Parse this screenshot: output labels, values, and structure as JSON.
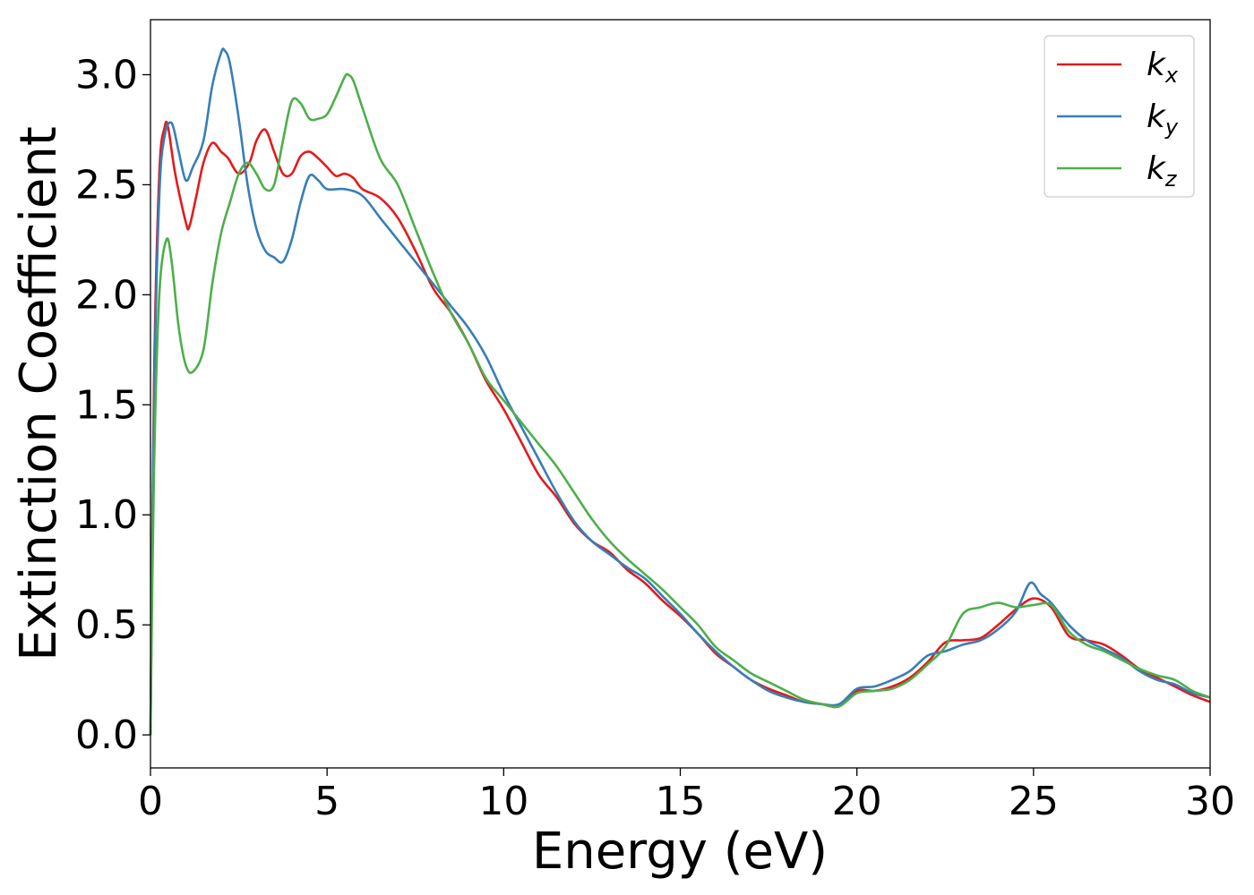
{
  "chart_data": {
    "type": "line",
    "xlabel": "Energy (eV)",
    "ylabel": "Extinction Coefficient",
    "xlim": [
      0,
      30
    ],
    "ylim": [
      -0.15,
      3.25
    ],
    "xticks": [
      0,
      5,
      10,
      15,
      20,
      25,
      30
    ],
    "xtick_labels": [
      "0",
      "5",
      "10",
      "15",
      "20",
      "25",
      "30"
    ],
    "yticks": [
      0.0,
      0.5,
      1.0,
      1.5,
      2.0,
      2.5,
      3.0
    ],
    "ytick_labels": [
      "0.0",
      "0.5",
      "1.0",
      "1.5",
      "2.0",
      "2.5",
      "3.0"
    ],
    "grid": false,
    "legend_position": "top-right",
    "series": [
      {
        "name": "k",
        "subscript": "x",
        "color": "#e41a1c",
        "x": [
          0,
          0.1,
          0.25,
          0.4,
          0.5,
          0.7,
          1.0,
          1.1,
          1.3,
          1.5,
          1.75,
          2.0,
          2.2,
          2.5,
          2.8,
          3.0,
          3.25,
          3.5,
          3.75,
          4.0,
          4.25,
          4.5,
          4.75,
          5.0,
          5.25,
          5.5,
          5.75,
          6.0,
          6.5,
          7.0,
          7.5,
          8.0,
          8.5,
          9.0,
          9.5,
          10.0,
          10.5,
          11.0,
          11.5,
          12.0,
          12.5,
          13.0,
          13.5,
          14.0,
          14.5,
          15.0,
          15.5,
          16.0,
          16.5,
          17.0,
          17.5,
          18.0,
          18.5,
          19.0,
          19.5,
          20.0,
          20.5,
          21.0,
          21.5,
          22.0,
          22.5,
          23.0,
          23.5,
          24.0,
          24.5,
          25.0,
          25.5,
          26.0,
          26.5,
          27.0,
          27.5,
          28.0,
          28.5,
          29.0,
          29.5,
          30.0
        ],
        "y": [
          0.0,
          1.6,
          2.55,
          2.76,
          2.76,
          2.55,
          2.33,
          2.31,
          2.45,
          2.6,
          2.69,
          2.65,
          2.62,
          2.55,
          2.6,
          2.7,
          2.75,
          2.65,
          2.55,
          2.55,
          2.63,
          2.65,
          2.62,
          2.58,
          2.54,
          2.55,
          2.53,
          2.48,
          2.44,
          2.35,
          2.2,
          2.03,
          1.92,
          1.78,
          1.61,
          1.48,
          1.33,
          1.18,
          1.08,
          0.96,
          0.88,
          0.83,
          0.75,
          0.69,
          0.61,
          0.54,
          0.46,
          0.37,
          0.31,
          0.25,
          0.21,
          0.18,
          0.15,
          0.14,
          0.13,
          0.2,
          0.2,
          0.22,
          0.26,
          0.33,
          0.42,
          0.43,
          0.44,
          0.5,
          0.57,
          0.62,
          0.58,
          0.45,
          0.43,
          0.41,
          0.36,
          0.3,
          0.26,
          0.22,
          0.18,
          0.15
        ]
      },
      {
        "name": "k",
        "subscript": "y",
        "color": "#377eb8",
        "x": [
          0,
          0.1,
          0.25,
          0.4,
          0.6,
          0.8,
          1.0,
          1.2,
          1.5,
          1.75,
          2.0,
          2.1,
          2.25,
          2.5,
          2.75,
          3.0,
          3.25,
          3.5,
          3.75,
          4.0,
          4.25,
          4.5,
          4.75,
          5.0,
          5.5,
          6.0,
          6.5,
          7.0,
          7.5,
          8.0,
          8.5,
          9.0,
          9.5,
          10.0,
          10.5,
          11.0,
          11.5,
          12.0,
          12.5,
          13.0,
          13.5,
          14.0,
          14.5,
          15.0,
          15.5,
          16.0,
          16.5,
          17.0,
          17.5,
          18.0,
          18.5,
          19.0,
          19.5,
          20.0,
          20.5,
          21.0,
          21.5,
          22.0,
          22.5,
          23.0,
          23.5,
          24.0,
          24.5,
          24.9,
          25.2,
          25.5,
          26.0,
          26.5,
          27.0,
          27.5,
          28.0,
          28.5,
          29.0,
          29.5,
          30.0
        ],
        "y": [
          0.0,
          1.5,
          2.45,
          2.72,
          2.78,
          2.65,
          2.52,
          2.58,
          2.7,
          2.95,
          3.1,
          3.11,
          3.05,
          2.8,
          2.5,
          2.3,
          2.2,
          2.17,
          2.15,
          2.25,
          2.42,
          2.54,
          2.52,
          2.48,
          2.48,
          2.45,
          2.35,
          2.25,
          2.15,
          2.05,
          1.95,
          1.85,
          1.72,
          1.55,
          1.4,
          1.25,
          1.1,
          0.97,
          0.88,
          0.82,
          0.76,
          0.71,
          0.63,
          0.55,
          0.46,
          0.38,
          0.31,
          0.25,
          0.2,
          0.17,
          0.15,
          0.14,
          0.14,
          0.21,
          0.22,
          0.25,
          0.29,
          0.36,
          0.38,
          0.41,
          0.43,
          0.48,
          0.56,
          0.69,
          0.64,
          0.6,
          0.5,
          0.43,
          0.39,
          0.35,
          0.29,
          0.25,
          0.23,
          0.19,
          0.17
        ]
      },
      {
        "name": "k",
        "subscript": "z",
        "color": "#4daf4a",
        "x": [
          0,
          0.1,
          0.25,
          0.45,
          0.6,
          0.8,
          1.0,
          1.2,
          1.5,
          1.75,
          2.0,
          2.25,
          2.5,
          2.75,
          3.0,
          3.25,
          3.5,
          3.75,
          4.0,
          4.25,
          4.5,
          4.75,
          5.0,
          5.25,
          5.5,
          5.6,
          5.75,
          6.0,
          6.5,
          7.0,
          7.5,
          8.0,
          8.5,
          9.0,
          9.5,
          10.0,
          10.5,
          11.0,
          11.5,
          12.0,
          12.5,
          13.0,
          13.5,
          14.0,
          14.5,
          15.0,
          15.5,
          16.0,
          16.5,
          17.0,
          17.5,
          18.0,
          18.5,
          19.0,
          19.5,
          20.0,
          20.5,
          21.0,
          21.5,
          22.0,
          22.5,
          23.0,
          23.5,
          24.0,
          24.5,
          25.0,
          25.5,
          26.0,
          26.5,
          27.0,
          27.5,
          28.0,
          28.5,
          29.0,
          29.5,
          30.0
        ],
        "y": [
          0.0,
          1.2,
          2.0,
          2.25,
          2.15,
          1.85,
          1.68,
          1.65,
          1.75,
          2.05,
          2.28,
          2.42,
          2.55,
          2.6,
          2.55,
          2.48,
          2.5,
          2.7,
          2.88,
          2.87,
          2.8,
          2.8,
          2.82,
          2.9,
          2.99,
          3.0,
          2.97,
          2.85,
          2.62,
          2.5,
          2.3,
          2.1,
          1.92,
          1.78,
          1.62,
          1.52,
          1.42,
          1.32,
          1.22,
          1.1,
          0.98,
          0.88,
          0.8,
          0.73,
          0.66,
          0.58,
          0.5,
          0.4,
          0.34,
          0.28,
          0.24,
          0.2,
          0.16,
          0.14,
          0.13,
          0.19,
          0.2,
          0.21,
          0.25,
          0.32,
          0.4,
          0.55,
          0.58,
          0.6,
          0.58,
          0.59,
          0.59,
          0.47,
          0.41,
          0.38,
          0.34,
          0.3,
          0.27,
          0.25,
          0.2,
          0.17
        ]
      }
    ]
  }
}
